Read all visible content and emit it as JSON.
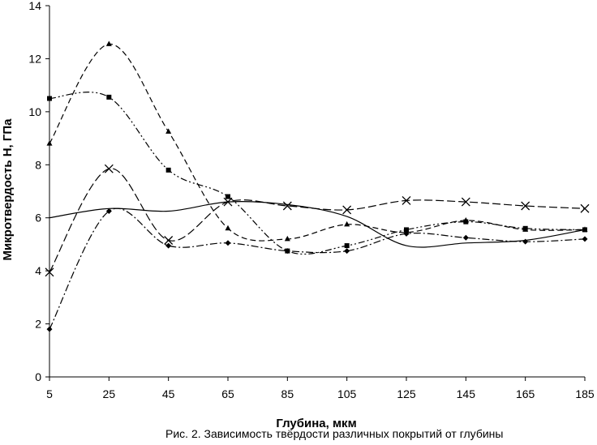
{
  "chart_data": {
    "type": "line",
    "title": "",
    "xlabel": "Глубина, мкм",
    "ylabel": "Микротвердость H, ГПа",
    "x": [
      5,
      25,
      45,
      65,
      85,
      105,
      125,
      145,
      165,
      185
    ],
    "x_ticks": [
      "5",
      "25",
      "45",
      "65",
      "85",
      "105",
      "125",
      "145",
      "165",
      "185"
    ],
    "ylim": [
      0,
      14
    ],
    "y_ticks": [
      "0",
      "2",
      "4",
      "6",
      "8",
      "10",
      "12",
      "14"
    ],
    "grid": false,
    "legend": "none",
    "series": [
      {
        "values": [
          6.0,
          6.35,
          6.25,
          6.6,
          6.5,
          6.05,
          4.95,
          5.05,
          5.15,
          5.55
        ],
        "marker": "none",
        "dash": "solid"
      },
      {
        "values": [
          8.8,
          12.55,
          9.25,
          5.6,
          5.2,
          5.75,
          5.45,
          5.9,
          5.55,
          5.55
        ],
        "marker": "triangle",
        "dash": "dashed"
      },
      {
        "values": [
          10.5,
          10.55,
          7.8,
          6.8,
          4.75,
          4.95,
          5.55,
          5.85,
          5.6,
          5.55
        ],
        "marker": "square",
        "dash": "dash-dot-dot"
      },
      {
        "values": [
          3.95,
          7.85,
          5.15,
          6.6,
          6.45,
          6.3,
          6.65,
          6.6,
          6.45,
          6.35
        ],
        "marker": "cross",
        "dash": "long-dash"
      },
      {
        "values": [
          1.8,
          6.25,
          4.95,
          5.05,
          4.75,
          4.75,
          5.4,
          5.25,
          5.1,
          5.2
        ],
        "marker": "diamond",
        "dash": "dash-dot"
      }
    ]
  },
  "caption": "Рис. 2. Зависимость твёрдости различных покрытий от глубины"
}
